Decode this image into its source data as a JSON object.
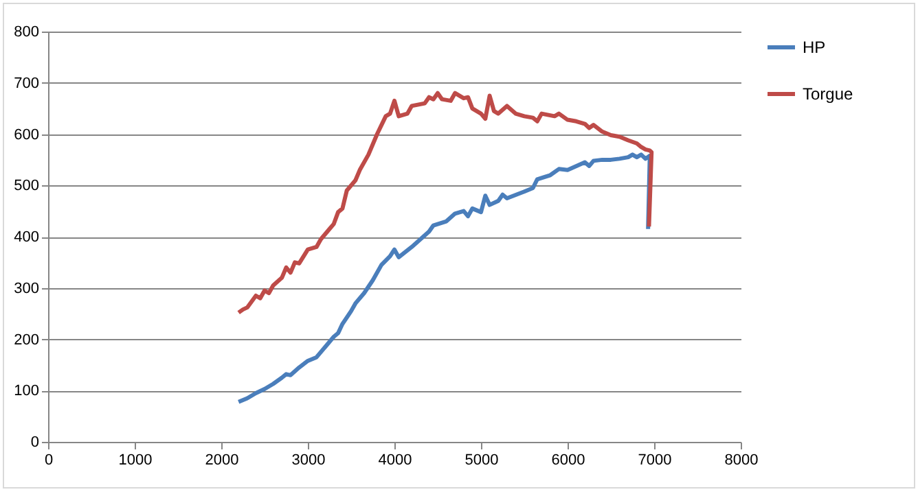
{
  "chart_data": {
    "type": "line",
    "xlim": [
      0,
      8000
    ],
    "xticks": [
      0,
      1000,
      2000,
      3000,
      4000,
      5000,
      6000,
      7000,
      8000
    ],
    "ylim": [
      0,
      800
    ],
    "yticks": [
      0,
      100,
      200,
      300,
      400,
      500,
      600,
      700,
      800
    ],
    "grid": "y",
    "legend": "right",
    "marker": "none",
    "line_style": "solid",
    "series": [
      {
        "name": "HP",
        "color": "#4a7ebb",
        "x": [
          2200,
          2300,
          2400,
          2500,
          2600,
          2700,
          2750,
          2800,
          2900,
          3000,
          3100,
          3200,
          3300,
          3350,
          3400,
          3500,
          3550,
          3650,
          3750,
          3850,
          3950,
          4000,
          4050,
          4200,
          4300,
          4400,
          4450,
          4600,
          4700,
          4800,
          4850,
          4900,
          5000,
          5050,
          5100,
          5200,
          5250,
          5300,
          5500,
          5600,
          5650,
          5800,
          5900,
          6000,
          6200,
          6250,
          6300,
          6400,
          6500,
          6600,
          6700,
          6750,
          6800,
          6850,
          6900,
          6950,
          6930
        ],
        "values": [
          78,
          85,
          95,
          103,
          113,
          125,
          132,
          130,
          145,
          158,
          165,
          185,
          205,
          212,
          230,
          255,
          270,
          290,
          315,
          345,
          362,
          375,
          360,
          380,
          395,
          410,
          422,
          430,
          445,
          450,
          440,
          455,
          448,
          480,
          462,
          470,
          482,
          475,
          488,
          495,
          512,
          520,
          532,
          530,
          545,
          538,
          548,
          550,
          550,
          552,
          555,
          560,
          555,
          560,
          552,
          558,
          415
        ]
      },
      {
        "name": "Torgue",
        "color": "#be4b48",
        "x": [
          2200,
          2250,
          2300,
          2400,
          2450,
          2500,
          2550,
          2600,
          2700,
          2750,
          2800,
          2850,
          2900,
          3000,
          3100,
          3150,
          3250,
          3300,
          3350,
          3400,
          3450,
          3550,
          3600,
          3700,
          3800,
          3900,
          3950,
          4000,
          4050,
          4150,
          4200,
          4350,
          4400,
          4450,
          4500,
          4550,
          4650,
          4700,
          4800,
          4850,
          4900,
          4950,
          5000,
          5050,
          5100,
          5150,
          5200,
          5300,
          5400,
          5500,
          5600,
          5650,
          5700,
          5850,
          5900,
          6000,
          6100,
          6200,
          6250,
          6300,
          6400,
          6500,
          6600,
          6700,
          6750,
          6800,
          6850,
          6900,
          6950,
          6970,
          6940
        ],
        "values": [
          252,
          258,
          262,
          285,
          280,
          295,
          290,
          305,
          320,
          340,
          330,
          350,
          348,
          375,
          380,
          395,
          415,
          425,
          448,
          455,
          490,
          510,
          530,
          560,
          600,
          635,
          640,
          665,
          635,
          640,
          655,
          660,
          672,
          668,
          680,
          668,
          665,
          680,
          670,
          672,
          650,
          645,
          640,
          630,
          675,
          645,
          640,
          655,
          640,
          635,
          632,
          625,
          640,
          635,
          640,
          628,
          625,
          620,
          612,
          618,
          605,
          598,
          595,
          588,
          585,
          582,
          575,
          570,
          568,
          565,
          420
        ]
      }
    ]
  }
}
